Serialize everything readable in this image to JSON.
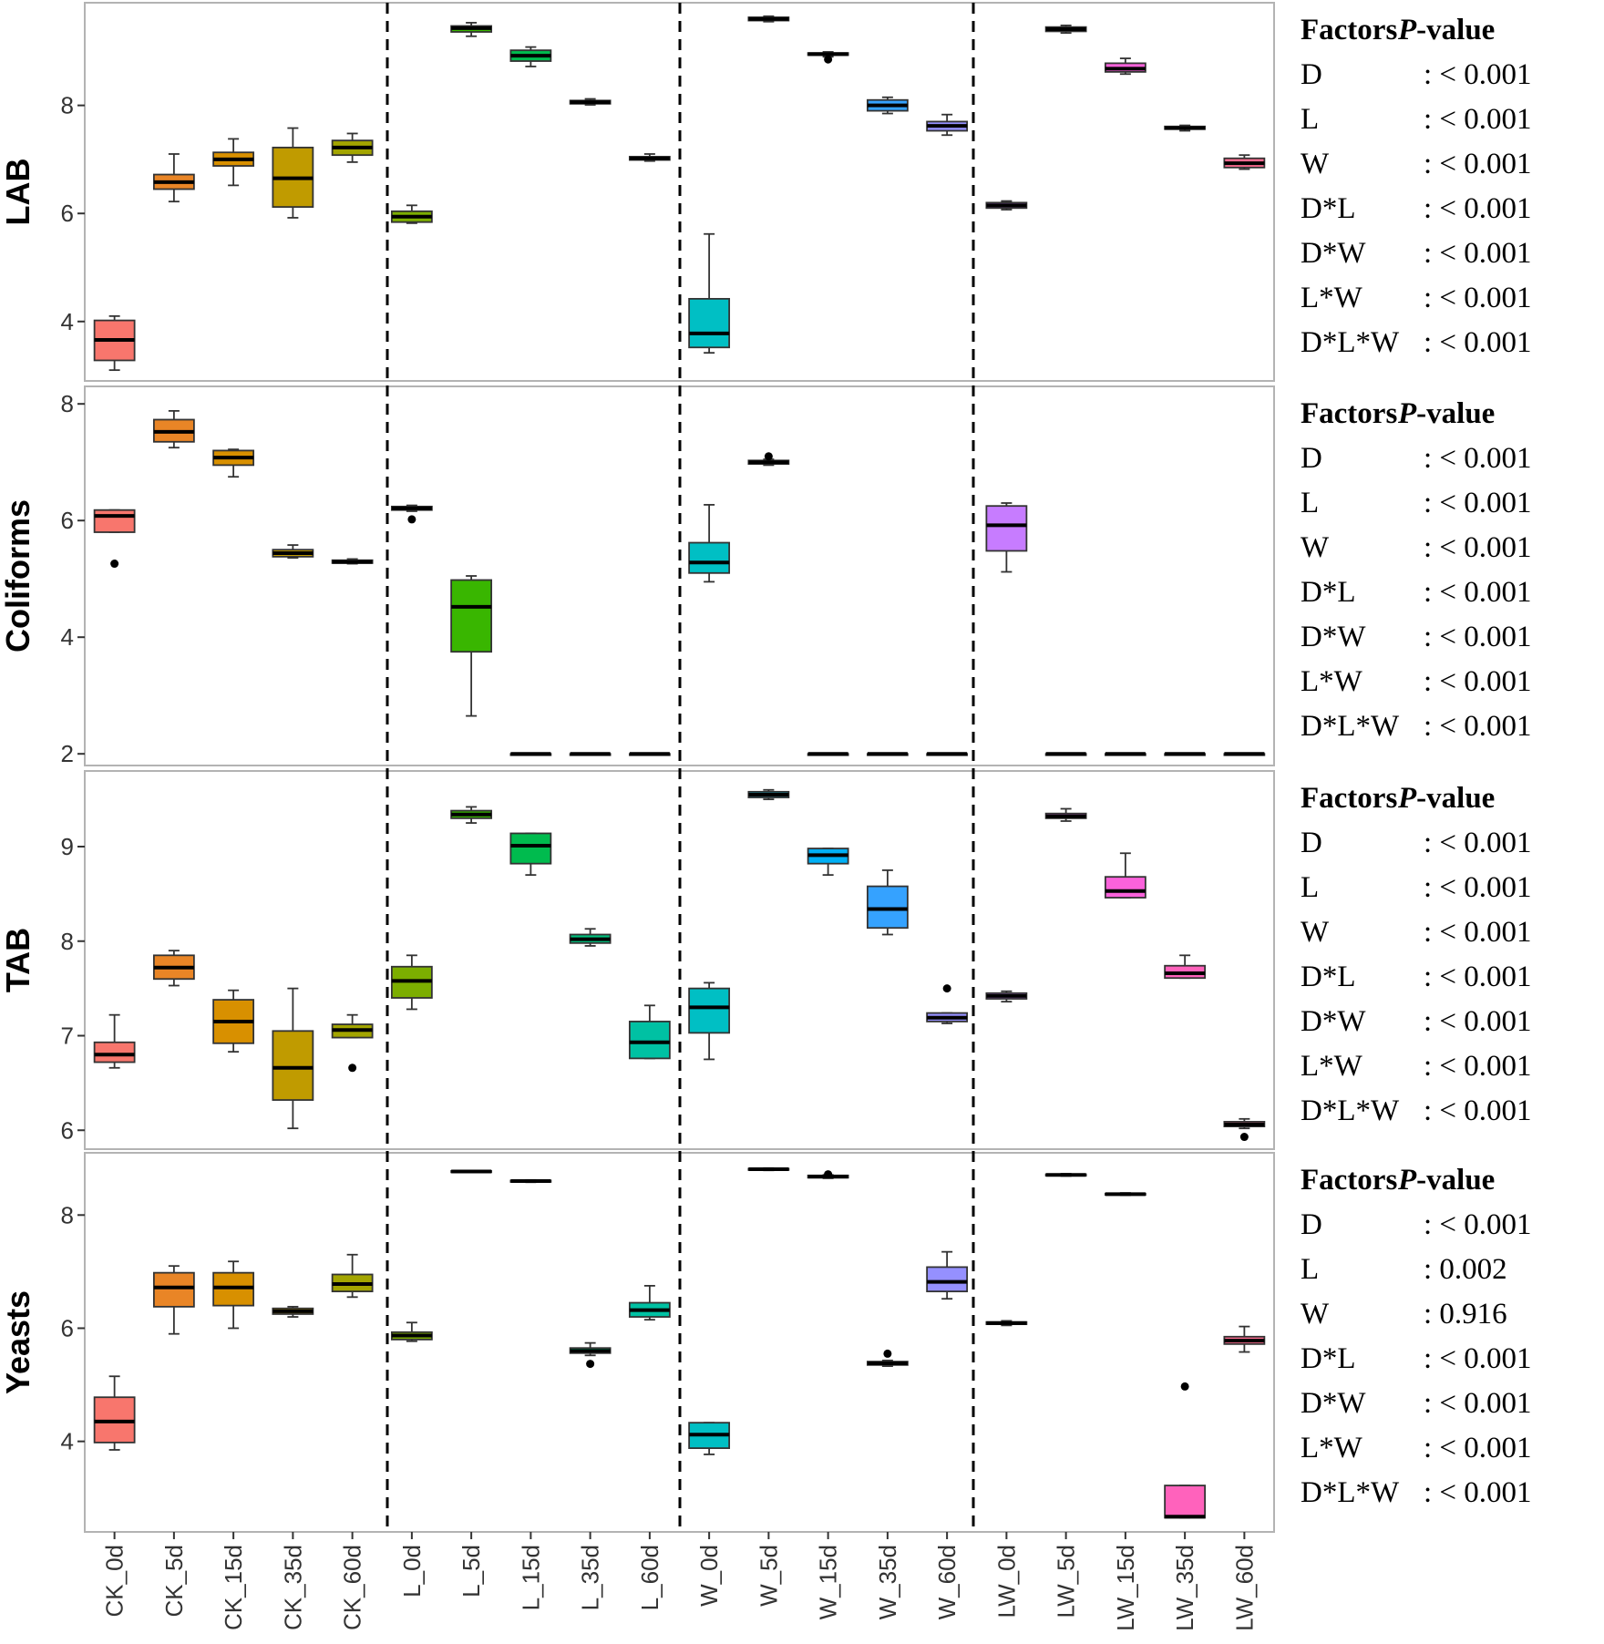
{
  "chart_data": {
    "type": "boxplot",
    "categories": [
      "CK_0d",
      "CK_5d",
      "CK_15d",
      "CK_35d",
      "CK_60d",
      "L_0d",
      "L_5d",
      "L_15d",
      "L_35d",
      "L_60d",
      "W_0d",
      "W_5d",
      "W_15d",
      "W_35d",
      "W_60d",
      "LW_0d",
      "LW_5d",
      "LW_15d",
      "LW_35d",
      "LW_60d"
    ],
    "colors": [
      "#F8766D",
      "#E98526",
      "#D89000",
      "#C09B00",
      "#A3A500",
      "#7CAE00",
      "#39B600",
      "#00BB4E",
      "#00BF7D",
      "#00C1A3",
      "#00BFC4",
      "#00BAE0",
      "#00B0F6",
      "#35A2FF",
      "#9590FF",
      "#C77CFF",
      "#E76BF3",
      "#FA62DB",
      "#FF62BC",
      "#FF6C91"
    ],
    "panels": [
      {
        "ylabel": "LAB",
        "ylim": [
          2.9,
          9.9
        ],
        "yticks": [
          4,
          6,
          8
        ],
        "boxes": [
          {
            "q1": 3.28,
            "median": 3.66,
            "q3": 4.02,
            "wlo": 3.1,
            "whi": 4.1,
            "out": []
          },
          {
            "q1": 6.45,
            "median": 6.58,
            "q3": 6.72,
            "wlo": 6.22,
            "whi": 7.1,
            "out": []
          },
          {
            "q1": 6.88,
            "median": 7.0,
            "q3": 7.13,
            "wlo": 6.52,
            "whi": 7.38,
            "out": []
          },
          {
            "q1": 6.12,
            "median": 6.65,
            "q3": 7.22,
            "wlo": 5.92,
            "whi": 7.58,
            "out": []
          },
          {
            "q1": 7.08,
            "median": 7.22,
            "q3": 7.35,
            "wlo": 6.95,
            "whi": 7.48,
            "out": []
          },
          {
            "q1": 5.84,
            "median": 5.94,
            "q3": 6.04,
            "wlo": 5.82,
            "whi": 6.15,
            "out": []
          },
          {
            "q1": 9.36,
            "median": 9.43,
            "q3": 9.47,
            "wlo": 9.28,
            "whi": 9.53,
            "out": []
          },
          {
            "q1": 8.82,
            "median": 8.92,
            "q3": 9.02,
            "wlo": 8.72,
            "whi": 9.08,
            "out": []
          },
          {
            "q1": 8.03,
            "median": 8.06,
            "q3": 8.09,
            "wlo": 8.01,
            "whi": 8.12,
            "out": []
          },
          {
            "q1": 6.99,
            "median": 7.02,
            "q3": 7.05,
            "wlo": 6.97,
            "whi": 7.1,
            "out": []
          },
          {
            "q1": 3.52,
            "median": 3.78,
            "q3": 4.42,
            "wlo": 3.42,
            "whi": 5.62,
            "out": []
          },
          {
            "q1": 9.57,
            "median": 9.6,
            "q3": 9.63,
            "wlo": 9.55,
            "whi": 9.65,
            "out": []
          },
          {
            "q1": 8.93,
            "median": 8.95,
            "q3": 8.97,
            "wlo": 8.9,
            "whi": 8.99,
            "out": [
              8.85
            ]
          },
          {
            "q1": 7.9,
            "median": 8.0,
            "q3": 8.1,
            "wlo": 7.85,
            "whi": 8.15,
            "out": []
          },
          {
            "q1": 7.53,
            "median": 7.62,
            "q3": 7.7,
            "wlo": 7.45,
            "whi": 7.83,
            "out": []
          },
          {
            "q1": 6.1,
            "median": 6.15,
            "q3": 6.2,
            "wlo": 6.07,
            "whi": 6.23,
            "out": []
          },
          {
            "q1": 9.37,
            "median": 9.41,
            "q3": 9.45,
            "wlo": 9.34,
            "whi": 9.48,
            "out": []
          },
          {
            "q1": 8.62,
            "median": 8.68,
            "q3": 8.78,
            "wlo": 8.58,
            "whi": 8.87,
            "out": []
          },
          {
            "q1": 7.56,
            "median": 7.58,
            "q3": 7.61,
            "wlo": 7.53,
            "whi": 7.63,
            "out": []
          },
          {
            "q1": 6.85,
            "median": 6.93,
            "q3": 7.02,
            "wlo": 6.82,
            "whi": 7.08,
            "out": []
          }
        ],
        "factors": [
          {
            "name": "D",
            "p": ": < 0.001"
          },
          {
            "name": "L",
            "p": ": < 0.001"
          },
          {
            "name": "W",
            "p": ": < 0.001"
          },
          {
            "name": "D*L",
            "p": ": < 0.001"
          },
          {
            "name": "D*W",
            "p": ": < 0.001"
          },
          {
            "name": "L*W",
            "p": ": < 0.001"
          },
          {
            "name": "D*L*W",
            "p": ": < 0.001"
          }
        ]
      },
      {
        "ylabel": "Coliforms",
        "ylim": [
          1.8,
          8.3
        ],
        "yticks": [
          2,
          4,
          6,
          8
        ],
        "boxes": [
          {
            "q1": 5.8,
            "median": 6.08,
            "q3": 6.18,
            "wlo": 5.8,
            "whi": 6.18,
            "out": [
              5.26
            ]
          },
          {
            "q1": 7.35,
            "median": 7.52,
            "q3": 7.73,
            "wlo": 7.25,
            "whi": 7.88,
            "out": []
          },
          {
            "q1": 6.95,
            "median": 7.08,
            "q3": 7.2,
            "wlo": 6.75,
            "whi": 7.22,
            "out": []
          },
          {
            "q1": 5.38,
            "median": 5.44,
            "q3": 5.5,
            "wlo": 5.36,
            "whi": 5.58,
            "out": []
          },
          {
            "q1": 5.27,
            "median": 5.29,
            "q3": 5.32,
            "wlo": 5.26,
            "whi": 5.34,
            "out": []
          },
          {
            "q1": 6.18,
            "median": 6.21,
            "q3": 6.24,
            "wlo": 6.16,
            "whi": 6.26,
            "out": [
              6.02
            ]
          },
          {
            "q1": 3.75,
            "median": 4.52,
            "q3": 4.98,
            "wlo": 2.65,
            "whi": 5.05,
            "out": []
          },
          {
            "q1": 2.0,
            "median": 2.0,
            "q3": 2.0,
            "wlo": 2.0,
            "whi": 2.0,
            "out": []
          },
          {
            "q1": 2.0,
            "median": 2.0,
            "q3": 2.0,
            "wlo": 2.0,
            "whi": 2.0,
            "out": []
          },
          {
            "q1": 2.0,
            "median": 2.0,
            "q3": 2.0,
            "wlo": 2.0,
            "whi": 2.0,
            "out": []
          },
          {
            "q1": 5.1,
            "median": 5.28,
            "q3": 5.62,
            "wlo": 4.95,
            "whi": 6.27,
            "out": []
          },
          {
            "q1": 6.97,
            "median": 7.0,
            "q3": 7.03,
            "wlo": 6.95,
            "whi": 7.05,
            "out": [
              7.1
            ]
          },
          {
            "q1": 2.0,
            "median": 2.0,
            "q3": 2.0,
            "wlo": 2.0,
            "whi": 2.0,
            "out": []
          },
          {
            "q1": 2.0,
            "median": 2.0,
            "q3": 2.0,
            "wlo": 2.0,
            "whi": 2.0,
            "out": []
          },
          {
            "q1": 2.0,
            "median": 2.0,
            "q3": 2.0,
            "wlo": 2.0,
            "whi": 2.0,
            "out": []
          },
          {
            "q1": 5.48,
            "median": 5.92,
            "q3": 6.25,
            "wlo": 5.12,
            "whi": 6.3,
            "out": []
          },
          {
            "q1": 2.0,
            "median": 2.0,
            "q3": 2.0,
            "wlo": 2.0,
            "whi": 2.0,
            "out": []
          },
          {
            "q1": 2.0,
            "median": 2.0,
            "q3": 2.0,
            "wlo": 2.0,
            "whi": 2.0,
            "out": []
          },
          {
            "q1": 2.0,
            "median": 2.0,
            "q3": 2.0,
            "wlo": 2.0,
            "whi": 2.0,
            "out": []
          },
          {
            "q1": 2.0,
            "median": 2.0,
            "q3": 2.0,
            "wlo": 2.0,
            "whi": 2.0,
            "out": []
          }
        ],
        "factors": [
          {
            "name": "D",
            "p": ": < 0.001"
          },
          {
            "name": "L",
            "p": ": < 0.001"
          },
          {
            "name": "W",
            "p": ": < 0.001"
          },
          {
            "name": "D*L",
            "p": ": < 0.001"
          },
          {
            "name": "D*W",
            "p": ": < 0.001"
          },
          {
            "name": "L*W",
            "p": ": < 0.001"
          },
          {
            "name": "D*L*W",
            "p": ": < 0.001"
          }
        ]
      },
      {
        "ylabel": "TAB",
        "ylim": [
          5.8,
          9.8
        ],
        "yticks": [
          6,
          7,
          8,
          9
        ],
        "boxes": [
          {
            "q1": 6.72,
            "median": 6.8,
            "q3": 6.93,
            "wlo": 6.66,
            "whi": 7.22,
            "out": []
          },
          {
            "q1": 7.6,
            "median": 7.72,
            "q3": 7.85,
            "wlo": 7.53,
            "whi": 7.9,
            "out": []
          },
          {
            "q1": 6.92,
            "median": 7.15,
            "q3": 7.38,
            "wlo": 6.83,
            "whi": 7.48,
            "out": []
          },
          {
            "q1": 6.32,
            "median": 6.66,
            "q3": 7.05,
            "wlo": 6.02,
            "whi": 7.5,
            "out": []
          },
          {
            "q1": 6.98,
            "median": 7.06,
            "q3": 7.12,
            "wlo": 6.98,
            "whi": 7.22,
            "out": [
              6.66
            ]
          },
          {
            "q1": 7.4,
            "median": 7.58,
            "q3": 7.73,
            "wlo": 7.28,
            "whi": 7.85,
            "out": []
          },
          {
            "q1": 9.3,
            "median": 9.34,
            "q3": 9.38,
            "wlo": 9.25,
            "whi": 9.42,
            "out": []
          },
          {
            "q1": 8.82,
            "median": 9.01,
            "q3": 9.14,
            "wlo": 8.7,
            "whi": 9.14,
            "out": []
          },
          {
            "q1": 7.98,
            "median": 8.02,
            "q3": 8.07,
            "wlo": 7.95,
            "whi": 8.13,
            "out": []
          },
          {
            "q1": 6.76,
            "median": 6.93,
            "q3": 7.15,
            "wlo": 6.76,
            "whi": 7.32,
            "out": []
          },
          {
            "q1": 7.03,
            "median": 7.3,
            "q3": 7.5,
            "wlo": 6.75,
            "whi": 7.56,
            "out": []
          },
          {
            "q1": 9.52,
            "median": 9.55,
            "q3": 9.58,
            "wlo": 9.5,
            "whi": 9.6,
            "out": []
          },
          {
            "q1": 8.82,
            "median": 8.91,
            "q3": 8.98,
            "wlo": 8.7,
            "whi": 8.98,
            "out": []
          },
          {
            "q1": 8.14,
            "median": 8.34,
            "q3": 8.58,
            "wlo": 8.07,
            "whi": 8.75,
            "out": []
          },
          {
            "q1": 7.15,
            "median": 7.19,
            "q3": 7.24,
            "wlo": 7.13,
            "whi": 7.24,
            "out": [
              7.5
            ]
          },
          {
            "q1": 7.39,
            "median": 7.42,
            "q3": 7.45,
            "wlo": 7.36,
            "whi": 7.47,
            "out": []
          },
          {
            "q1": 9.3,
            "median": 9.32,
            "q3": 9.35,
            "wlo": 9.27,
            "whi": 9.4,
            "out": []
          },
          {
            "q1": 8.46,
            "median": 8.53,
            "q3": 8.68,
            "wlo": 8.46,
            "whi": 8.93,
            "out": []
          },
          {
            "q1": 7.61,
            "median": 7.66,
            "q3": 7.74,
            "wlo": 7.61,
            "whi": 7.85,
            "out": []
          },
          {
            "q1": 6.04,
            "median": 6.06,
            "q3": 6.09,
            "wlo": 6.02,
            "whi": 6.12,
            "out": [
              5.93
            ]
          }
        ],
        "factors": [
          {
            "name": "D",
            "p": ": < 0.001"
          },
          {
            "name": "L",
            "p": ": < 0.001"
          },
          {
            "name": "W",
            "p": ": < 0.001"
          },
          {
            "name": "D*L",
            "p": ": < 0.001"
          },
          {
            "name": "D*W",
            "p": ": < 0.001"
          },
          {
            "name": "L*W",
            "p": ": < 0.001"
          },
          {
            "name": "D*L*W",
            "p": ": < 0.001"
          }
        ]
      },
      {
        "ylabel": "Yeasts",
        "ylim": [
          2.4,
          9.1
        ],
        "yticks": [
          4,
          6,
          8
        ],
        "boxes": [
          {
            "q1": 3.98,
            "median": 4.35,
            "q3": 4.78,
            "wlo": 3.85,
            "whi": 5.15,
            "out": []
          },
          {
            "q1": 6.38,
            "median": 6.72,
            "q3": 6.98,
            "wlo": 5.9,
            "whi": 7.1,
            "out": []
          },
          {
            "q1": 6.4,
            "median": 6.72,
            "q3": 6.98,
            "wlo": 6.0,
            "whi": 7.18,
            "out": []
          },
          {
            "q1": 6.25,
            "median": 6.3,
            "q3": 6.35,
            "wlo": 6.2,
            "whi": 6.38,
            "out": []
          },
          {
            "q1": 6.65,
            "median": 6.78,
            "q3": 6.95,
            "wlo": 6.55,
            "whi": 7.3,
            "out": []
          },
          {
            "q1": 5.8,
            "median": 5.87,
            "q3": 5.93,
            "wlo": 5.77,
            "whi": 6.1,
            "out": []
          },
          {
            "q1": 8.76,
            "median": 8.77,
            "q3": 8.78,
            "wlo": 8.76,
            "whi": 8.78,
            "out": []
          },
          {
            "q1": 8.59,
            "median": 8.6,
            "q3": 8.61,
            "wlo": 8.58,
            "whi": 8.62,
            "out": []
          },
          {
            "q1": 5.56,
            "median": 5.6,
            "q3": 5.65,
            "wlo": 5.52,
            "whi": 5.74,
            "out": [
              5.37
            ]
          },
          {
            "q1": 6.2,
            "median": 6.32,
            "q3": 6.45,
            "wlo": 6.15,
            "whi": 6.75,
            "out": []
          },
          {
            "q1": 3.88,
            "median": 4.12,
            "q3": 4.33,
            "wlo": 3.77,
            "whi": 4.33,
            "out": []
          },
          {
            "q1": 8.8,
            "median": 8.81,
            "q3": 8.82,
            "wlo": 8.79,
            "whi": 8.83,
            "out": []
          },
          {
            "q1": 8.66,
            "median": 8.68,
            "q3": 8.7,
            "wlo": 8.65,
            "whi": 8.71,
            "out": [
              8.72
            ]
          },
          {
            "q1": 5.35,
            "median": 5.38,
            "q3": 5.41,
            "wlo": 5.33,
            "whi": 5.43,
            "out": [
              5.55
            ]
          },
          {
            "q1": 6.65,
            "median": 6.82,
            "q3": 7.08,
            "wlo": 6.52,
            "whi": 7.35,
            "out": []
          },
          {
            "q1": 6.07,
            "median": 6.09,
            "q3": 6.11,
            "wlo": 6.05,
            "whi": 6.13,
            "out": []
          },
          {
            "q1": 8.7,
            "median": 8.71,
            "q3": 8.72,
            "wlo": 8.69,
            "whi": 8.73,
            "out": []
          },
          {
            "q1": 8.36,
            "median": 8.37,
            "q3": 8.38,
            "wlo": 8.35,
            "whi": 8.39,
            "out": []
          },
          {
            "q1": 2.65,
            "median": 2.67,
            "q3": 3.22,
            "wlo": 2.65,
            "whi": 3.22,
            "out": [
              4.97
            ]
          },
          {
            "q1": 5.72,
            "median": 5.78,
            "q3": 5.85,
            "wlo": 5.58,
            "whi": 6.03,
            "out": []
          }
        ],
        "factors": [
          {
            "name": "D",
            "p": ": < 0.001"
          },
          {
            "name": "L",
            "p": ": 0.002"
          },
          {
            "name": "W",
            "p": ": 0.916"
          },
          {
            "name": "D*L",
            "p": ": < 0.001"
          },
          {
            "name": "D*W",
            "p": ": < 0.001"
          },
          {
            "name": "L*W",
            "p": ": < 0.001"
          },
          {
            "name": "D*L*W",
            "p": ": < 0.001"
          }
        ]
      }
    ],
    "factor_header": {
      "factors": "Factors",
      "p_prefix": "P",
      "p_suffix": "-value"
    }
  }
}
